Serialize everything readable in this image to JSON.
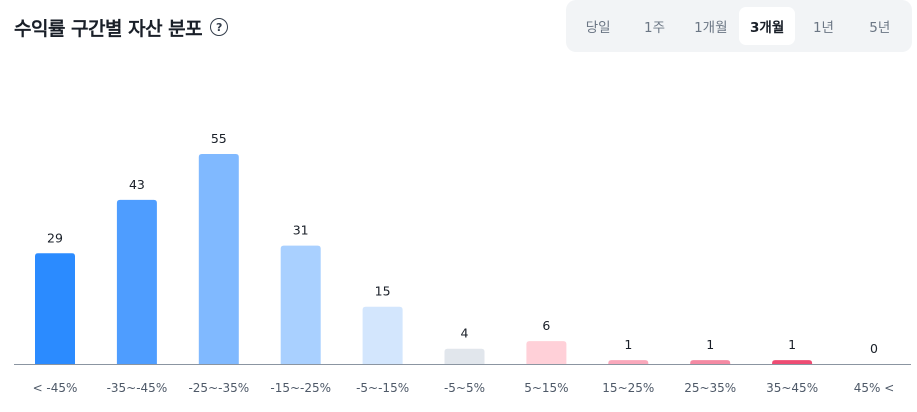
{
  "header": {
    "title": "수익률 구간별 자산 분포",
    "help_icon": "question-circle-icon",
    "help_glyph": "?"
  },
  "period_tabs": {
    "items": [
      "당일",
      "1주",
      "1개월",
      "3개월",
      "1년",
      "5년"
    ],
    "selected": "3개월"
  },
  "chart_data": {
    "type": "bar",
    "title": "수익률 구간별 자산 분포",
    "categories": [
      "< -45%",
      "-35~-45%",
      "-25~-35%",
      "-15~-25%",
      "-5~-15%",
      "-5~5%",
      "5~15%",
      "15~25%",
      "25~35%",
      "35~45%",
      "45% <"
    ],
    "values": [
      29,
      43,
      55,
      31,
      15,
      4,
      6,
      1,
      1,
      1,
      0
    ],
    "colors": [
      "#2b8bff",
      "#4e9dff",
      "#80b9ff",
      "#a9d0ff",
      "#d3e6fd",
      "#e1e6ec",
      "#ffd0d8",
      "#f9a8bb",
      "#f48aa3",
      "#ee4c73",
      "#ee4c73"
    ],
    "ylim": [
      0,
      55
    ],
    "grid": false,
    "legend": "none"
  }
}
